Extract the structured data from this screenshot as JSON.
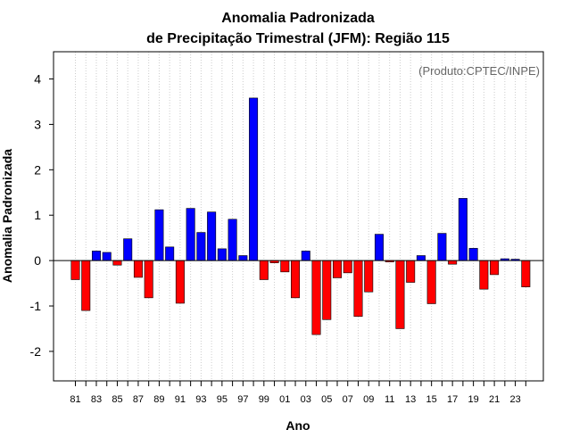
{
  "chart_data": {
    "type": "bar",
    "title": "Anomalia Padronizada",
    "subtitle": "de Precipitação Trimestral (JFM): Região 115",
    "annotation": "(Produto:CPTEC/INPE)",
    "xlabel": "Ano",
    "ylabel": "Anomalia Padronizada",
    "ylim": [
      -2.65,
      4.6
    ],
    "yticks": [
      -2,
      -1,
      0,
      1,
      2,
      3,
      4
    ],
    "categories": [
      "81",
      "82",
      "83",
      "84",
      "85",
      "86",
      "87",
      "88",
      "89",
      "90",
      "91",
      "92",
      "93",
      "94",
      "95",
      "96",
      "97",
      "98",
      "99",
      "00",
      "01",
      "02",
      "03",
      "04",
      "05",
      "06",
      "07",
      "08",
      "09",
      "10",
      "11",
      "12",
      "13",
      "14",
      "15",
      "16",
      "17",
      "18",
      "19",
      "20",
      "21",
      "22",
      "23",
      "24"
    ],
    "xtick_labels": [
      "81",
      "83",
      "85",
      "87",
      "89",
      "91",
      "93",
      "95",
      "97",
      "99",
      "01",
      "03",
      "05",
      "07",
      "09",
      "11",
      "13",
      "15",
      "17",
      "19",
      "21",
      "23"
    ],
    "values": [
      -0.42,
      -1.1,
      0.21,
      0.18,
      -0.1,
      0.48,
      -0.37,
      -0.82,
      1.12,
      0.3,
      -0.94,
      1.15,
      0.62,
      1.07,
      0.26,
      0.91,
      0.11,
      3.58,
      -0.42,
      -0.05,
      -0.25,
      -0.82,
      0.21,
      -1.63,
      -1.3,
      -0.38,
      -0.27,
      -1.23,
      -0.69,
      0.58,
      -0.03,
      -1.5,
      -0.48,
      0.11,
      -0.95,
      0.6,
      -0.08,
      1.37,
      0.27,
      -0.63,
      -0.31,
      0.04,
      0.03,
      -0.58
    ],
    "colors": {
      "positive": "#0000ff",
      "negative": "#ff0000",
      "zero_line": "#000000",
      "grid": "#cccccc"
    },
    "grid": true
  }
}
